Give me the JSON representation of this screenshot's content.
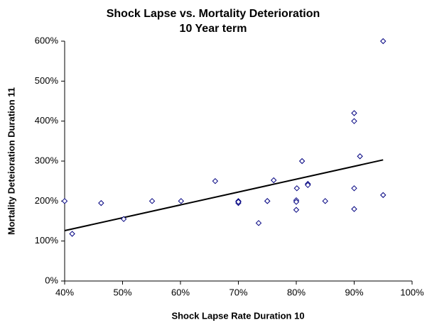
{
  "chart_data": {
    "type": "scatter",
    "title": "Shock Lapse vs. Mortality Deterioration",
    "subtitle": "10 Year term",
    "x_label": "Shock Lapse Rate Duration 10",
    "y_label": "Mortality Deteioration Duration 11",
    "x": [
      40,
      41.3,
      46.3,
      50.2,
      55.1,
      60.1,
      66,
      70,
      70,
      70,
      73.5,
      75,
      75,
      76.1,
      80.1,
      80,
      80,
      80,
      81,
      82,
      82,
      85,
      90,
      90,
      90,
      90,
      91,
      95,
      95
    ],
    "values": [
      200,
      118,
      195,
      155,
      200,
      200,
      250,
      200,
      195,
      198,
      145,
      200,
      200,
      252,
      232,
      202,
      198,
      178,
      300,
      243,
      240,
      200,
      420,
      400,
      232,
      180,
      312,
      600,
      215
    ],
    "color": "#000080",
    "trendline": {
      "x": [
        40,
        95
      ],
      "y": [
        126,
        303
      ],
      "color": "#000000"
    },
    "xlim": [
      40,
      100
    ],
    "xticks": [
      {
        "value": 40,
        "label": "40%"
      },
      {
        "value": 50,
        "label": "50%"
      },
      {
        "value": 60,
        "label": "60%"
      },
      {
        "value": 70,
        "label": "70%"
      },
      {
        "value": 80,
        "label": "80%"
      },
      {
        "value": 90,
        "label": "90%"
      },
      {
        "value": 100,
        "label": "100%"
      }
    ],
    "ylim": [
      0,
      600
    ],
    "yticks": [
      {
        "value": 0,
        "label": "0%"
      },
      {
        "value": 100,
        "label": "100%"
      },
      {
        "value": 200,
        "label": "200%"
      },
      {
        "value": 300,
        "label": "300%"
      },
      {
        "value": 400,
        "label": "400%"
      },
      {
        "value": 500,
        "label": "500%"
      },
      {
        "value": 600,
        "label": "600%"
      }
    ],
    "grid": false
  }
}
